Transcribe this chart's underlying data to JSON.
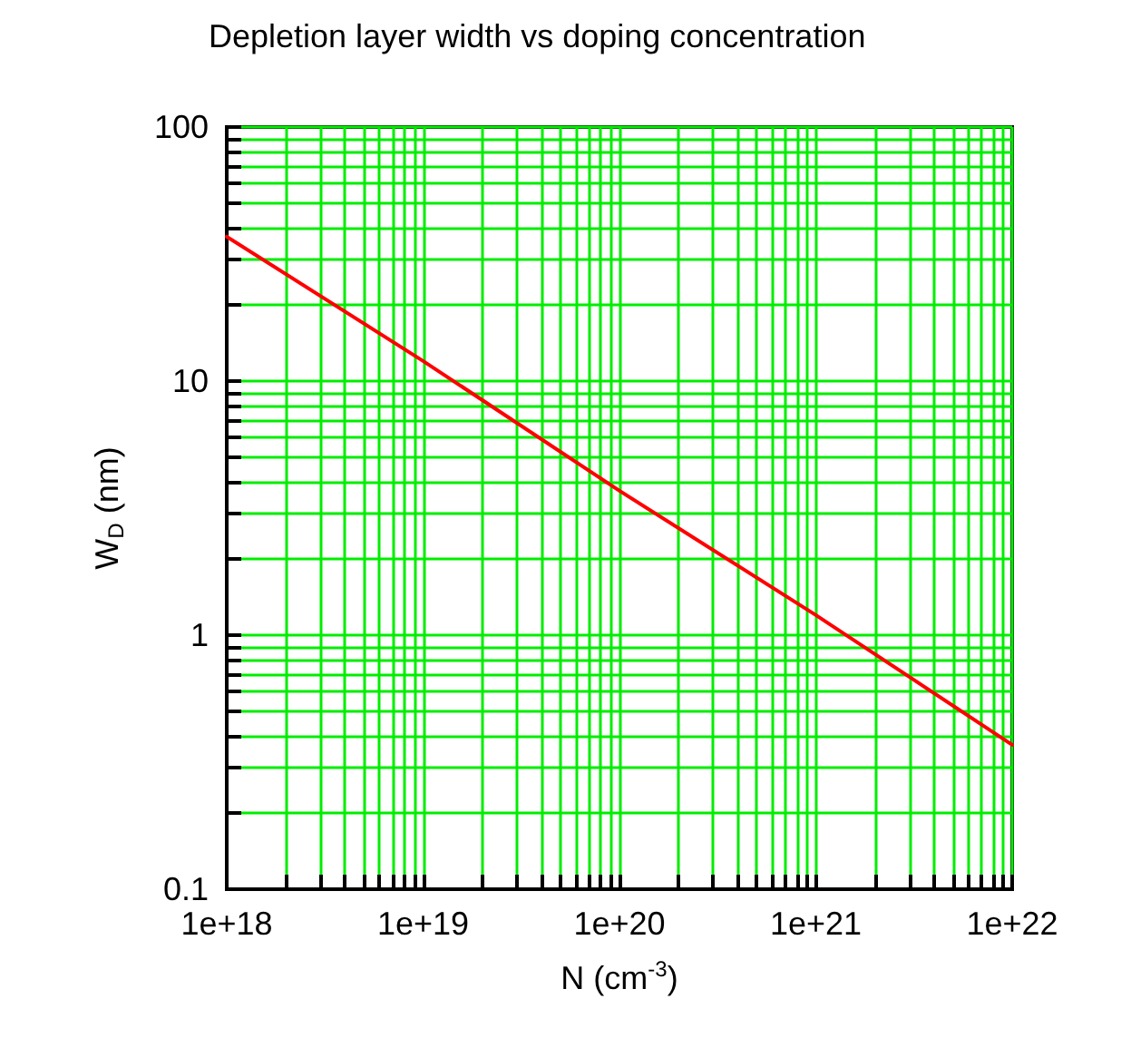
{
  "chart_data": {
    "type": "line",
    "title": "Depletion layer width vs doping concentration",
    "xlabel": "N (cm$^{-3}$)",
    "ylabel": "W$_{D}$ (nm)",
    "x": [
      1e+18,
      1e+19,
      1e+20,
      1e+21,
      1e+22
    ],
    "series": [
      {
        "color": "#ff0000",
        "values": [
          37,
          12,
          3.7,
          1.2,
          0.37
        ]
      }
    ],
    "log": "xy",
    "grid": true,
    "marker": "none",
    "line_style": "solid",
    "xlim": [
      1e+18,
      1e+22
    ],
    "ylim": [
      0.1,
      100
    ],
    "xticks": [
      {
        "value": 1e+18,
        "label": "1e+18"
      },
      {
        "value": 2e+18,
        "label": null
      },
      {
        "value": 3e+18,
        "label": null
      },
      {
        "value": 4e+18,
        "label": null
      },
      {
        "value": 5e+18,
        "label": null
      },
      {
        "value": 6e+18,
        "label": null
      },
      {
        "value": 7e+18,
        "label": null
      },
      {
        "value": 8e+18,
        "label": null
      },
      {
        "value": 9e+18,
        "label": null
      },
      {
        "value": 1e+19,
        "label": "1e+19"
      },
      {
        "value": 2e+19,
        "label": null
      },
      {
        "value": 3e+19,
        "label": null
      },
      {
        "value": 4e+19,
        "label": null
      },
      {
        "value": 5e+19,
        "label": null
      },
      {
        "value": 6e+19,
        "label": null
      },
      {
        "value": 7e+19,
        "label": null
      },
      {
        "value": 8e+19,
        "label": null
      },
      {
        "value": 9e+19,
        "label": null
      },
      {
        "value": 1e+20,
        "label": "1e+20"
      },
      {
        "value": 2e+20,
        "label": null
      },
      {
        "value": 3e+20,
        "label": null
      },
      {
        "value": 4e+20,
        "label": null
      },
      {
        "value": 5e+20,
        "label": null
      },
      {
        "value": 6e+20,
        "label": null
      },
      {
        "value": 7e+20,
        "label": null
      },
      {
        "value": 8e+20,
        "label": null
      },
      {
        "value": 9e+20,
        "label": null
      },
      {
        "value": 1e+21,
        "label": "1e+21"
      },
      {
        "value": 2e+21,
        "label": null
      },
      {
        "value": 3e+21,
        "label": null
      },
      {
        "value": 4e+21,
        "label": null
      },
      {
        "value": 5e+21,
        "label": null
      },
      {
        "value": 6e+21,
        "label": null
      },
      {
        "value": 7e+21,
        "label": null
      },
      {
        "value": 8e+21,
        "label": null
      },
      {
        "value": 9e+21,
        "label": null
      },
      {
        "value": 1e+22,
        "label": "1e+22"
      }
    ],
    "yticks": [
      0.1,
      {
        "value": 0.2,
        "label": null
      },
      {
        "value": 0.3,
        "label": null
      },
      {
        "value": 0.4,
        "label": null
      },
      {
        "value": 0.5,
        "label": null
      },
      {
        "value": 0.6,
        "label": null
      },
      {
        "value": 0.7,
        "label": null
      },
      {
        "value": 0.8,
        "label": null
      },
      {
        "value": 0.9,
        "label": null
      },
      1,
      {
        "value": 2,
        "label": null
      },
      {
        "value": 3,
        "label": null
      },
      {
        "value": 4,
        "label": null
      },
      {
        "value": 5,
        "label": null
      },
      {
        "value": 6,
        "label": null
      },
      {
        "value": 7,
        "label": null
      },
      {
        "value": 8,
        "label": null
      },
      {
        "value": 9,
        "label": null
      },
      10,
      {
        "value": 20,
        "label": null
      },
      {
        "value": 30,
        "label": null
      },
      {
        "value": 40,
        "label": null
      },
      {
        "value": 50,
        "label": null
      },
      {
        "value": 60,
        "label": null
      },
      {
        "value": 70,
        "label": null
      },
      {
        "value": 80,
        "label": null
      },
      {
        "value": 90,
        "label": null
      },
      100
    ]
  }
}
